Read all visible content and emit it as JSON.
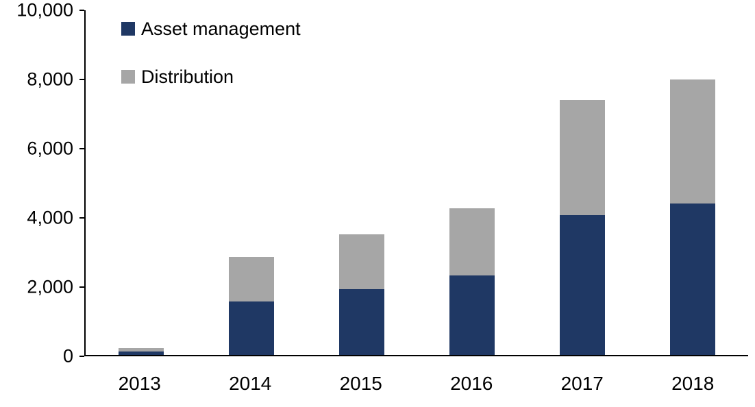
{
  "chart_data": {
    "type": "bar",
    "stacked": true,
    "title": "",
    "xlabel": "",
    "ylabel": "",
    "categories": [
      "2013",
      "2014",
      "2015",
      "2016",
      "2017",
      "2018"
    ],
    "series": [
      {
        "name": "Asset management",
        "color": "#1f3864",
        "values": [
          100,
          1550,
          1900,
          2300,
          4050,
          4400
        ]
      },
      {
        "name": "Distribution",
        "color": "#a6a6a6",
        "values": [
          100,
          1300,
          1600,
          1950,
          3350,
          3600
        ]
      }
    ],
    "totals": [
      200,
      2850,
      3500,
      4250,
      7400,
      8000
    ],
    "ylim": [
      0,
      10000
    ],
    "ytick_interval": 2000,
    "ytick_labels": [
      "0",
      "2,000",
      "4,000",
      "6,000",
      "8,000",
      "10,000"
    ],
    "legend_position": "top-left",
    "legend": [
      "Asset management",
      "Distribution"
    ],
    "grid": false,
    "axis_color": "#000000",
    "background_color": "#ffffff"
  }
}
